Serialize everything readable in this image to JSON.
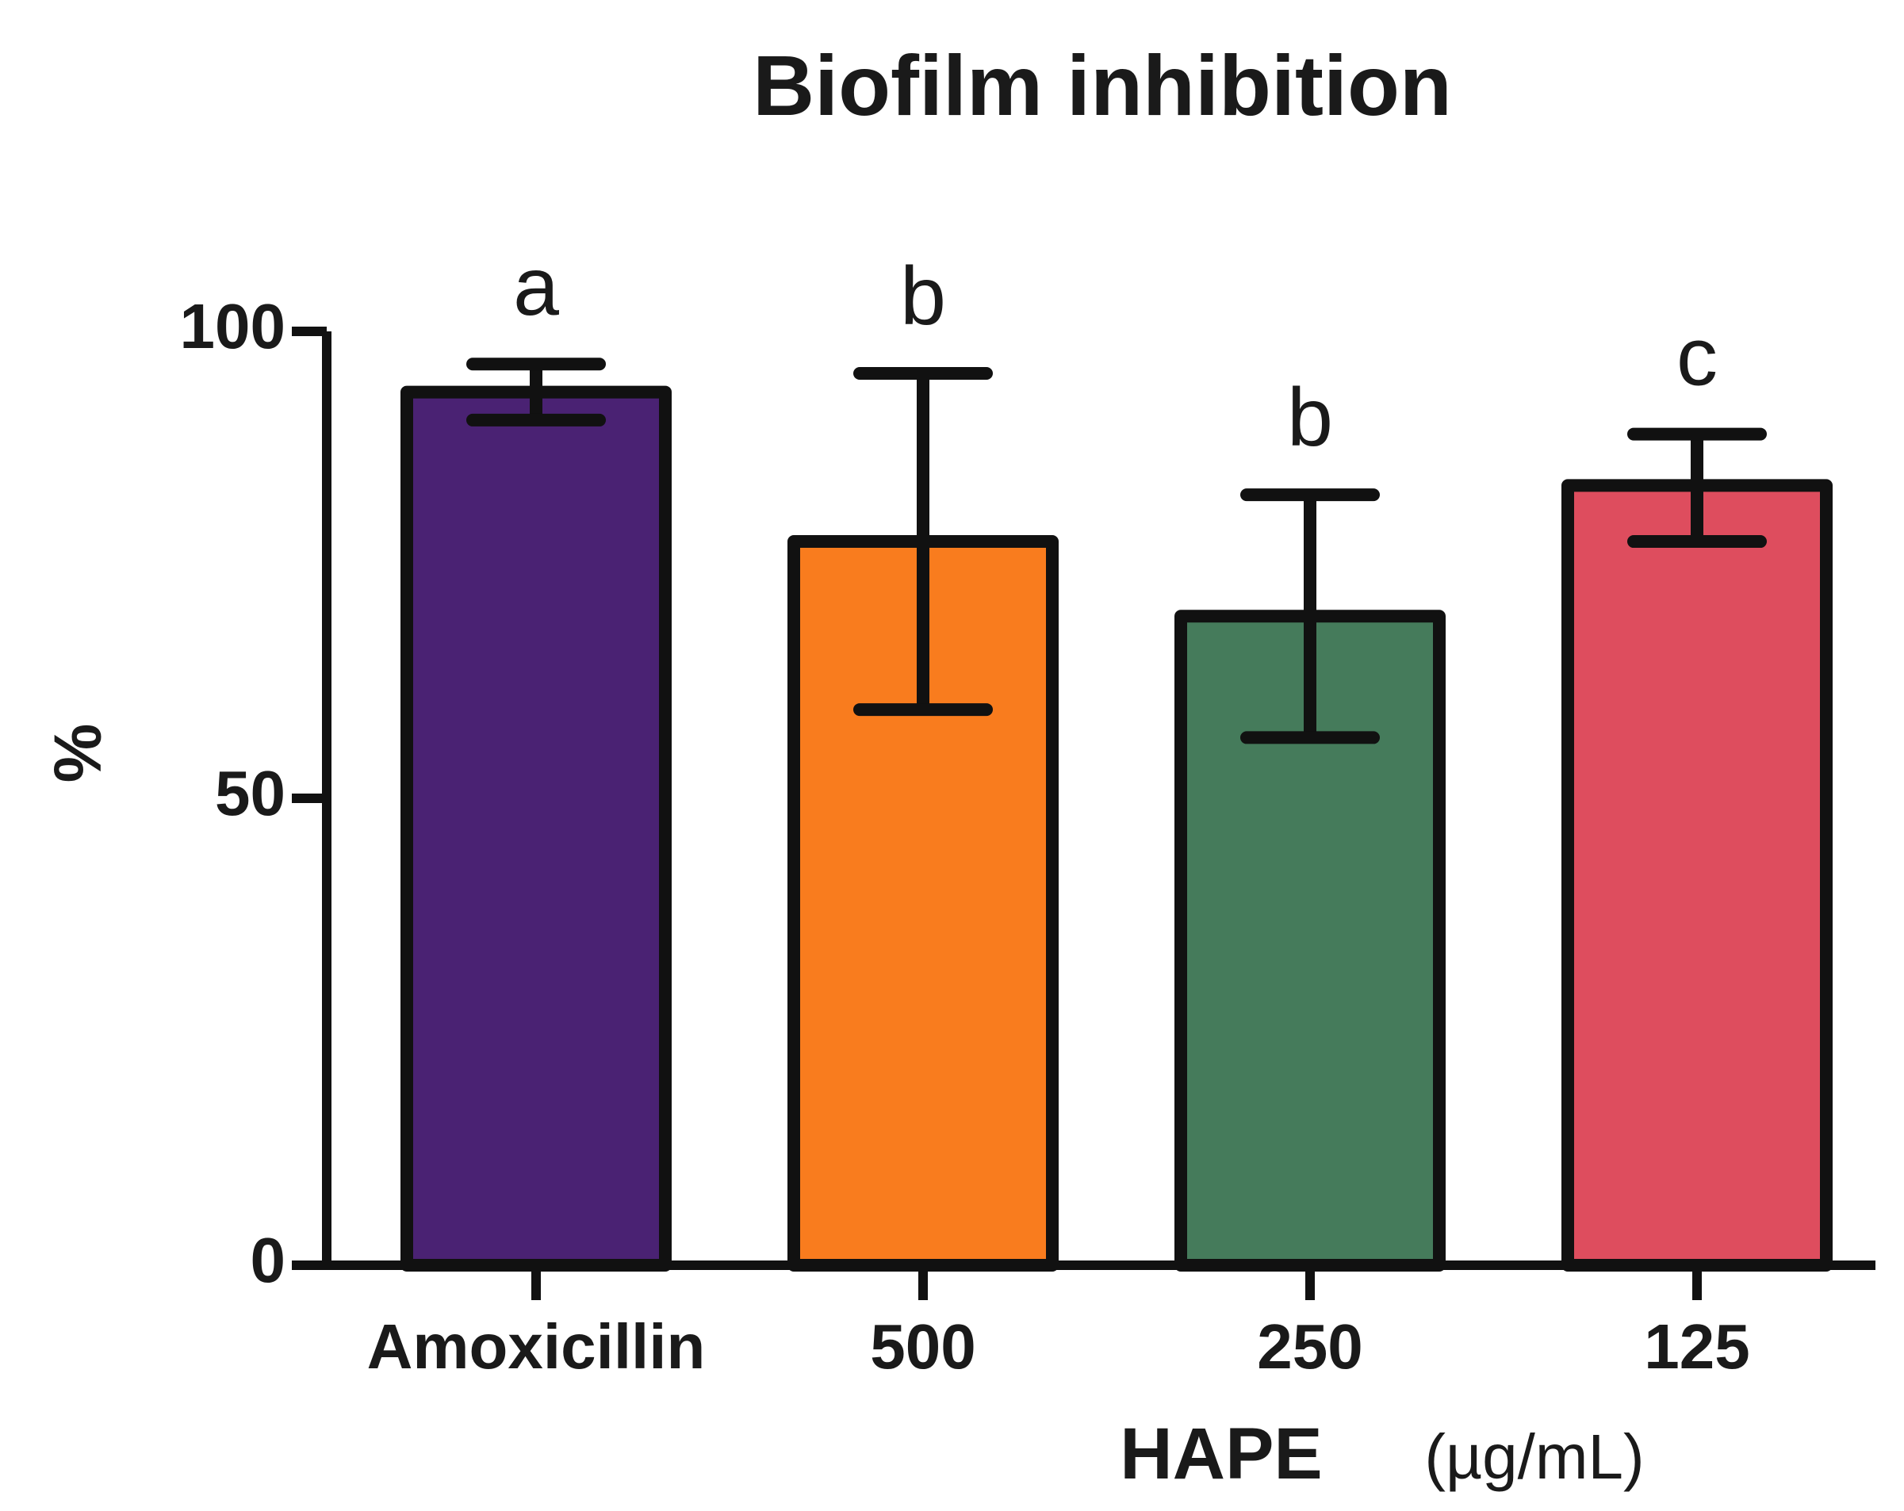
{
  "chart_data": {
    "type": "bar",
    "title": "Biofilm inhibition",
    "ylabel": "%",
    "xlabel": "HAPE",
    "xlabel_unit": "(µg/mL)",
    "categories": [
      "Amoxicillin",
      "500",
      "250",
      "125"
    ],
    "values": [
      93.5,
      77.5,
      69.5,
      83.5
    ],
    "error_upper": [
      96.5,
      95.5,
      82.5,
      89.0
    ],
    "error_lower": [
      90.5,
      59.5,
      56.5,
      77.5
    ],
    "significance_labels": [
      "a",
      "b",
      "b",
      "c"
    ],
    "colors": [
      "#4a2273",
      "#f97c1e",
      "#457b5b",
      "#de4d5e"
    ],
    "ylim": [
      0,
      100
    ],
    "yticks": [
      "0",
      "50",
      "100"
    ],
    "grid": false,
    "legend": "none"
  }
}
